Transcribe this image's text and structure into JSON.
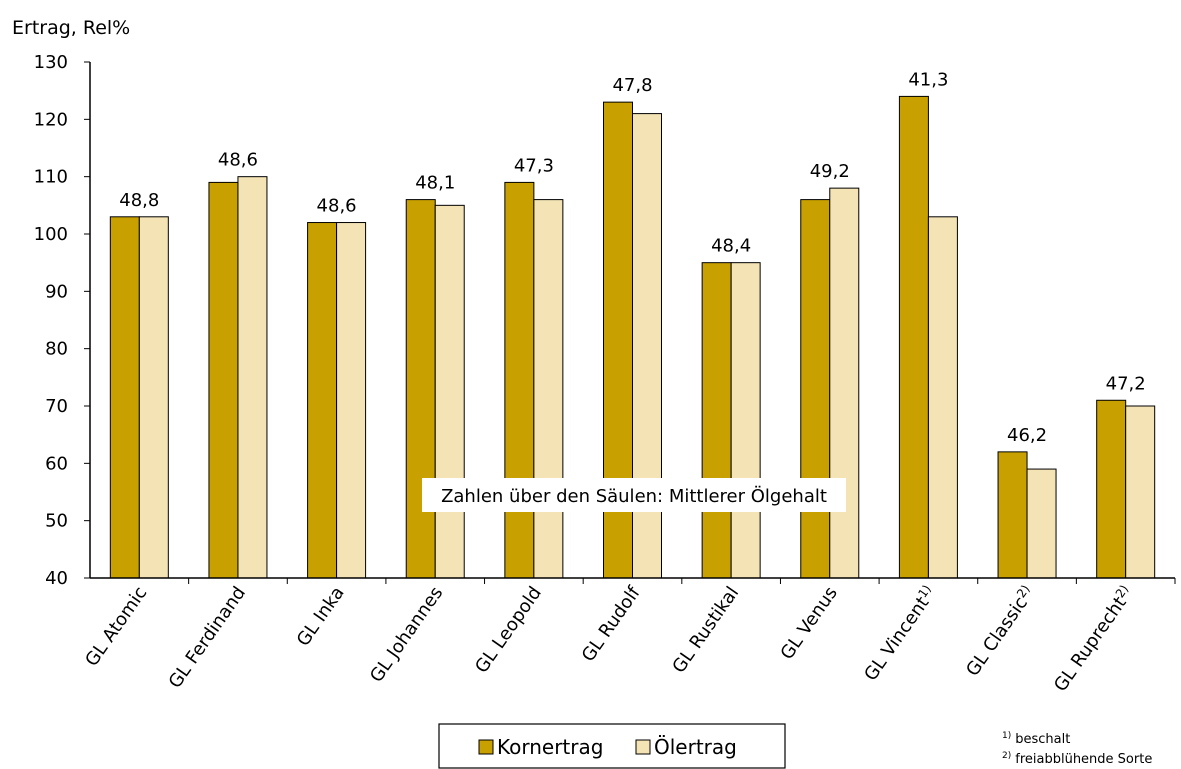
{
  "chart_data": {
    "type": "bar",
    "ylabel": "Ertrag, Rel%",
    "ylim": [
      40,
      130
    ],
    "yticks": [
      40,
      50,
      60,
      70,
      80,
      90,
      100,
      110,
      120,
      130
    ],
    "grid": false,
    "legend_position": "bottom-center",
    "categories": [
      "GL Atomic",
      "GL Ferdinand",
      "GL Inka",
      "GL Johannes",
      "GL Leopold",
      "GL Rudolf",
      "GL Rustikal",
      "GL Venus",
      "GL Vincent",
      "GL Classic",
      "GL Ruprecht"
    ],
    "category_superscripts": [
      "",
      "",
      "",
      "",
      "",
      "",
      "",
      "",
      "1)",
      "2)",
      "2)"
    ],
    "series": [
      {
        "name": "Kornertrag",
        "color": "#C8A000",
        "values": [
          103,
          109,
          102,
          106,
          109,
          123,
          95,
          106,
          124,
          62,
          71
        ]
      },
      {
        "name": "Ölertrag",
        "color": "#F3E3B5",
        "values": [
          103,
          110,
          102,
          105,
          106,
          121,
          95,
          108,
          103,
          59,
          70
        ]
      }
    ],
    "data_labels": [
      "48,8",
      "48,6",
      "48,6",
      "48,1",
      "47,3",
      "47,8",
      "48,4",
      "49,2",
      "41,3",
      "46,2",
      "47,2"
    ],
    "annotation": "Zahlen über den Säulen: Mittlerer Ölgehalt",
    "footnotes": [
      "beschalt",
      "freiabblühende Sorte"
    ],
    "footnote_markers": [
      "1)",
      "2)"
    ]
  }
}
